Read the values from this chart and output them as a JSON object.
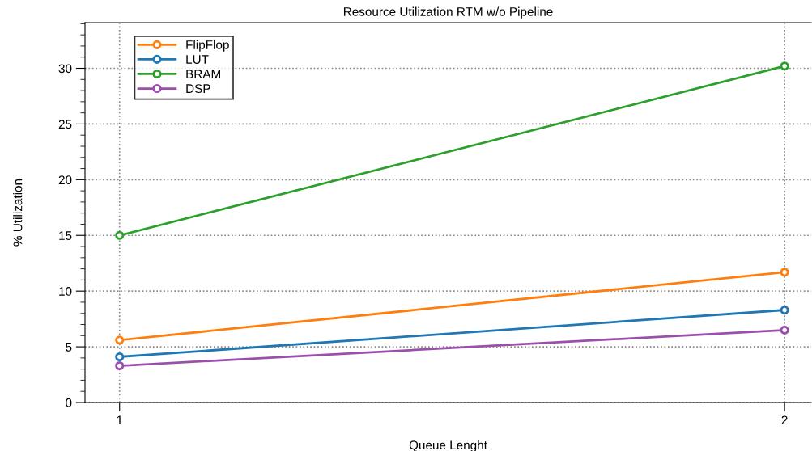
{
  "chart_data": {
    "type": "line",
    "title": "Resource Utilization RTM w/o Pipeline",
    "xlabel": "Queue Lenght",
    "ylabel": "% Utilization",
    "x": [
      1,
      2
    ],
    "series": [
      {
        "name": "FlipFlop",
        "color": "#ff7f0e",
        "values": [
          5.6,
          11.7
        ]
      },
      {
        "name": "LUT",
        "color": "#1f77b4",
        "values": [
          4.1,
          8.3
        ]
      },
      {
        "name": "BRAM",
        "color": "#2ca02c",
        "values": [
          15.0,
          30.2
        ]
      },
      {
        "name": "DSP",
        "color": "#9b4fad",
        "values": [
          3.3,
          6.5
        ]
      }
    ],
    "xlim": [
      0.948,
      2.04
    ],
    "xticks": [
      1,
      2
    ],
    "ylim": [
      0,
      34.1
    ],
    "yticks": [
      0,
      5,
      10,
      15,
      20,
      25,
      30
    ],
    "grid": true,
    "legend": "top left",
    "marker": "circle",
    "line_style": "solid"
  }
}
